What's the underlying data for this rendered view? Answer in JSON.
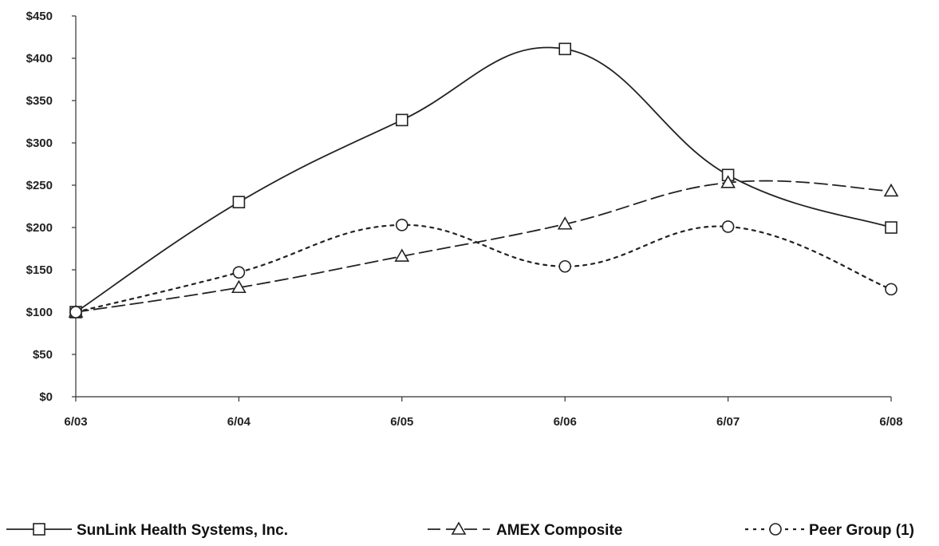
{
  "chart_data": {
    "type": "line",
    "title": "",
    "xlabel": "",
    "ylabel": "",
    "categories": [
      "6/03",
      "6/04",
      "6/05",
      "6/06",
      "6/07",
      "6/08"
    ],
    "y_ticks": [
      "$0",
      "$50",
      "$100",
      "$150",
      "$200",
      "$250",
      "$300",
      "$350",
      "$400",
      "$450"
    ],
    "ylim": [
      0,
      450
    ],
    "grid": false,
    "legend_position": "bottom",
    "series": [
      {
        "name": "SunLink Health Systems, Inc.",
        "values": [
          100,
          230,
          327,
          411,
          262,
          200
        ],
        "marker": "square",
        "dash": "solid",
        "smooth": true,
        "color": "#222222"
      },
      {
        "name": "AMEX Composite",
        "values": [
          100,
          129,
          166,
          204,
          253,
          243
        ],
        "marker": "triangle",
        "dash": "dashed",
        "smooth": true,
        "color": "#222222"
      },
      {
        "name": "Peer Group (1)",
        "values": [
          100,
          147,
          203,
          154,
          201,
          127
        ],
        "marker": "circle",
        "dash": "dotted",
        "smooth": true,
        "color": "#222222"
      }
    ]
  }
}
